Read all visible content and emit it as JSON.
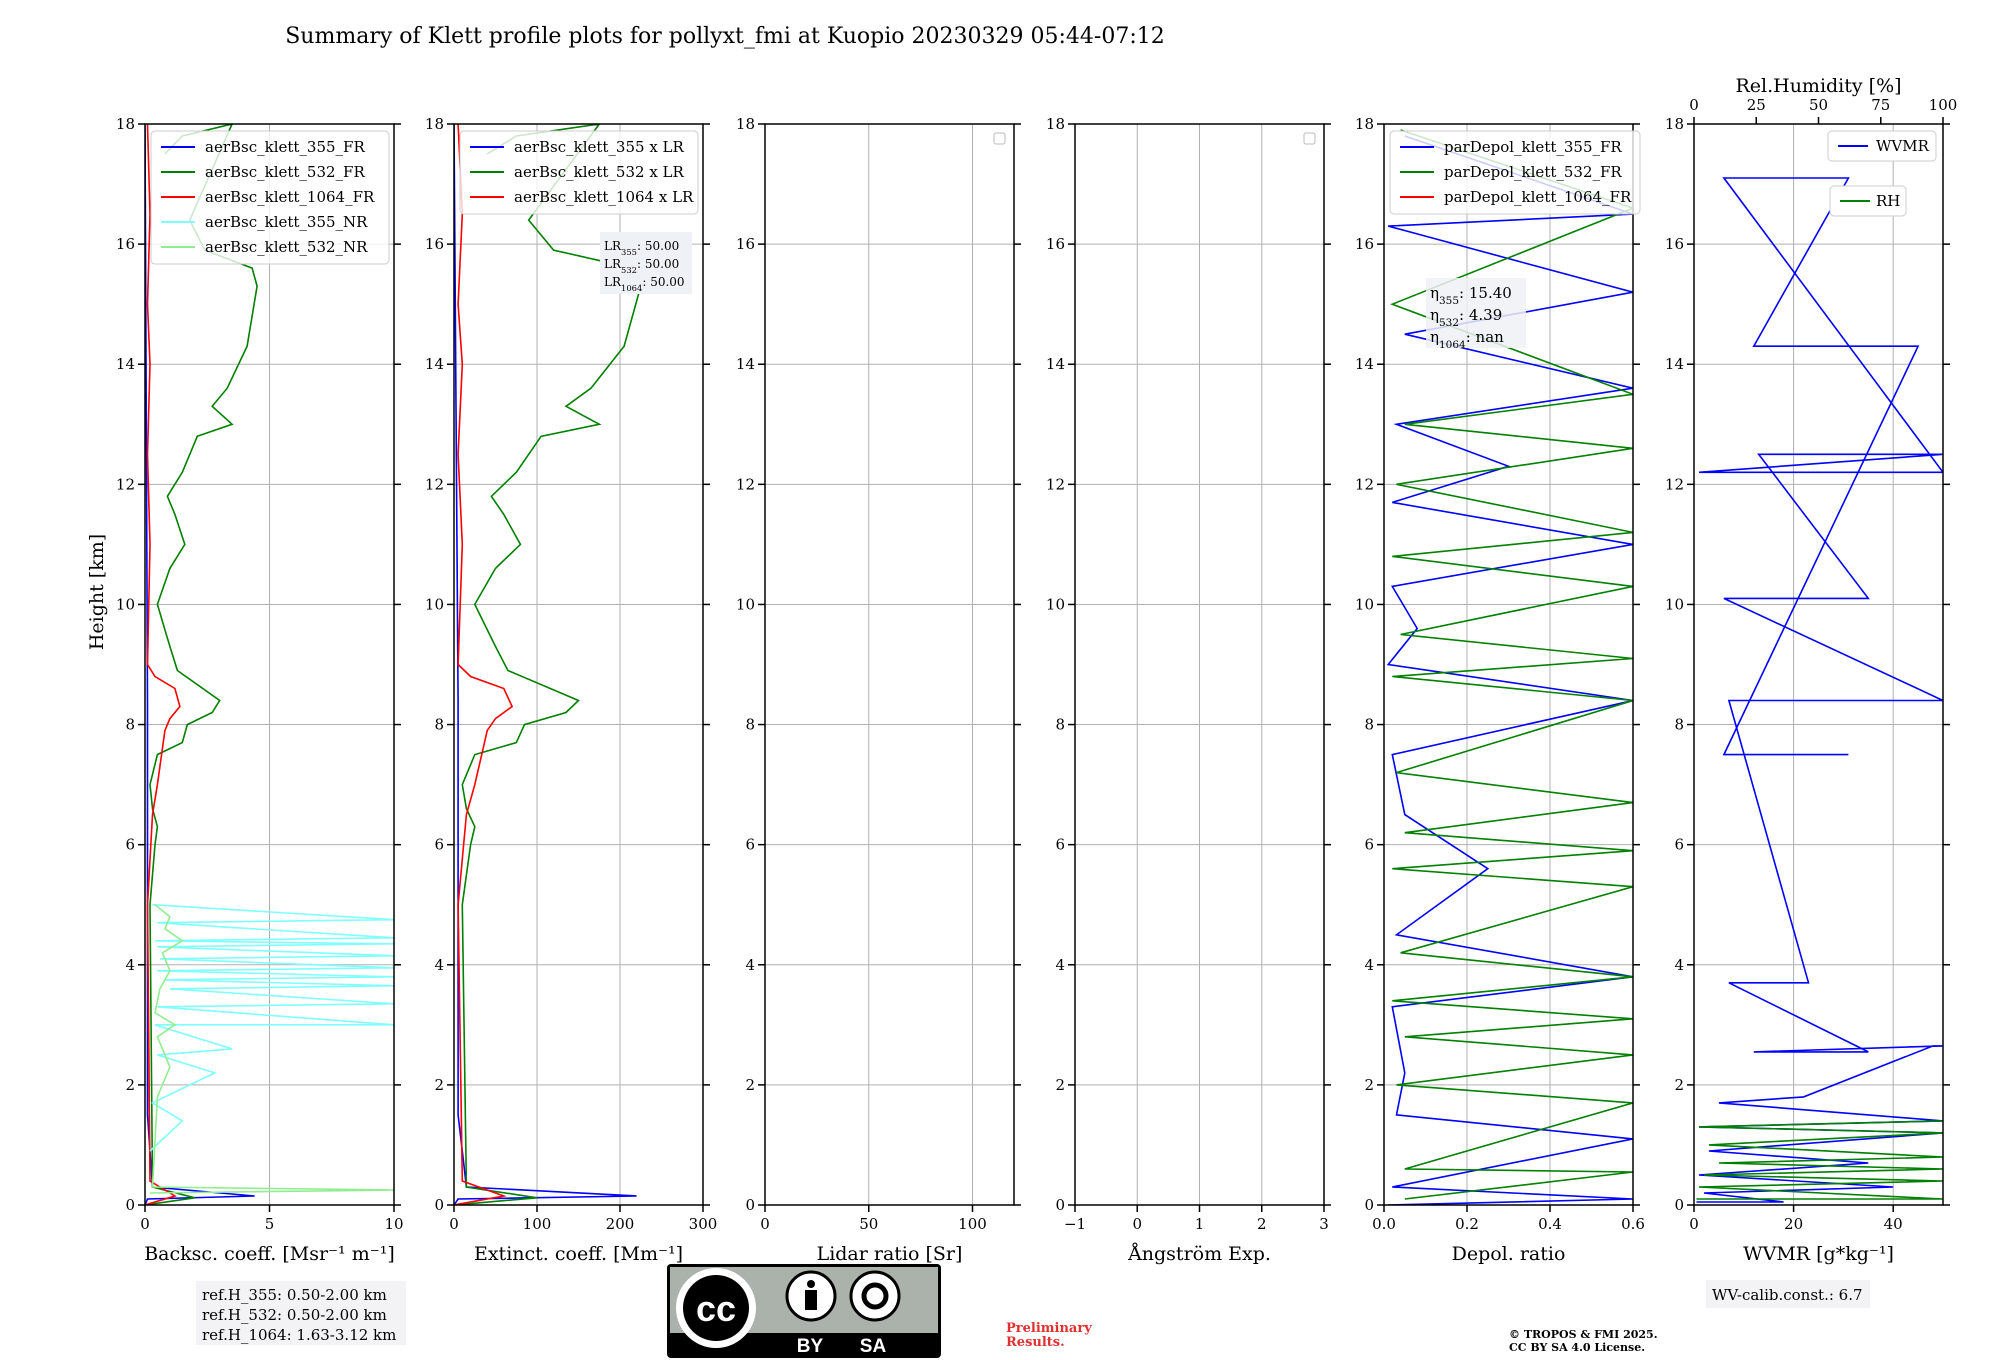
{
  "figure": {
    "title": "Summary of Klett profile plots for pollyxt_fmi at Kuopio 20230329 05:44-07:12",
    "ylabel": "Height [km]",
    "reference_heights": [
      "ref.H_355: 0.50-2.00 km",
      "ref.H_532: 0.50-2.00 km",
      "ref.H_1064: 1.63-3.12 km"
    ],
    "wv_calib": "WV-calib.const.: 6.7",
    "preliminary": [
      "Preliminary",
      "Results."
    ],
    "copyright": [
      "© TROPOS & FMI 2025.",
      "CC BY SA 4.0 License."
    ],
    "cc_badge": {
      "cc": "cc",
      "by": "BY",
      "sa": "SA"
    },
    "colors": {
      "blue": "#0000ff",
      "green": "#008000",
      "red": "#ff0000",
      "cyan": "#7fffff",
      "lightgreen": "#90ee90",
      "grid": "#b0b0b0",
      "warn": "#e03030"
    }
  },
  "chart_data": [
    {
      "type": "line",
      "xlabel": "Backsc. coeff. [Msr⁻¹ m⁻¹]",
      "xlim": [
        0,
        10
      ],
      "ylim": [
        0,
        18
      ],
      "xticks": [
        "0",
        "5",
        "10"
      ],
      "yticks": [
        "0",
        "2",
        "4",
        "6",
        "8",
        "10",
        "12",
        "14",
        "16",
        "18"
      ],
      "legend": {
        "position": "upper-left",
        "entries": [
          "aerBsc_klett_355_FR",
          "aerBsc_klett_532_FR",
          "aerBsc_klett_1064_FR",
          "aerBsc_klett_355_NR",
          "aerBsc_klett_532_NR"
        ]
      },
      "series": [
        {
          "name": "aerBsc_klett_355_FR",
          "color": "#0000ff",
          "x": [
            0.0,
            0.1,
            4.4,
            0.3,
            0.2,
            0.1,
            0.1,
            0.0
          ],
          "y": [
            0.0,
            0.1,
            0.15,
            0.3,
            0.9,
            1.5,
            8.35,
            18
          ]
        },
        {
          "name": "aerBsc_klett_532_FR",
          "color": "#008000",
          "x": [
            0.0,
            2.0,
            0.3,
            0.2,
            0.4,
            0.5,
            0.3,
            0.2,
            0.5,
            1.5,
            1.7,
            2.7,
            3.0,
            1.3,
            1.0,
            0.5,
            1.0,
            1.6,
            1.2,
            0.9,
            1.5,
            1.8,
            2.1,
            3.5,
            2.7,
            3.3,
            4.1,
            4.5,
            4.3,
            2.4,
            1.8,
            3.5,
            1.5,
            0.8
          ],
          "y": [
            0.0,
            0.12,
            0.3,
            5.0,
            6.0,
            6.3,
            6.6,
            7.0,
            7.5,
            7.7,
            8.0,
            8.2,
            8.4,
            8.9,
            9.3,
            10.0,
            10.6,
            11.0,
            11.5,
            11.8,
            12.2,
            12.5,
            12.8,
            13.0,
            13.3,
            13.6,
            14.3,
            15.3,
            15.6,
            15.9,
            16.4,
            18.0,
            17.8,
            17.5
          ]
        },
        {
          "name": "aerBsc_klett_1064_FR",
          "color": "#ff0000",
          "x": [
            0.0,
            1.2,
            0.2,
            0.1,
            0.3,
            0.5,
            0.7,
            0.8,
            1.0,
            1.4,
            1.2,
            0.4,
            0.1,
            0.2,
            0.1,
            0.2,
            0.1,
            0.2,
            0.1
          ],
          "y": [
            0.0,
            0.15,
            0.4,
            5.0,
            6.5,
            7.0,
            7.6,
            7.9,
            8.1,
            8.3,
            8.6,
            8.8,
            9.0,
            11.0,
            12.5,
            14.0,
            15.0,
            16.5,
            18.0
          ]
        },
        {
          "name": "aerBsc_klett_355_NR",
          "color": "#7fffff",
          "x": [
            0.2,
            1.5,
            0.3,
            2.8,
            0.5,
            3.5,
            0.4,
            10.0,
            0.5,
            10.0,
            1.0,
            10.0,
            0.8,
            10.0,
            0.5,
            10.0,
            0.6,
            10.0,
            0.5,
            10.0,
            0.4,
            10.0,
            0.5,
            10.0,
            0.3
          ],
          "y": [
            0.9,
            1.4,
            1.7,
            2.2,
            2.5,
            2.6,
            3.0,
            3.0,
            3.3,
            3.35,
            3.6,
            3.65,
            3.75,
            3.8,
            3.9,
            3.95,
            4.1,
            4.15,
            4.3,
            4.35,
            4.4,
            4.45,
            4.7,
            4.75,
            5.0
          ]
        },
        {
          "name": "aerBsc_klett_532_NR",
          "color": "#90ee90",
          "x": [
            0.2,
            10.0,
            0.3,
            0.5,
            1.0,
            0.5,
            1.2,
            0.4,
            0.6,
            1.0,
            0.7,
            1.5,
            0.8,
            1.0,
            0.4
          ],
          "y": [
            0.2,
            0.25,
            0.3,
            1.8,
            2.3,
            2.8,
            3.0,
            3.2,
            3.6,
            3.9,
            4.2,
            4.4,
            4.6,
            4.8,
            5.0
          ]
        }
      ]
    },
    {
      "type": "line",
      "xlabel": "Extinct. coeff. [Mm⁻¹]",
      "xlim": [
        0,
        300
      ],
      "ylim": [
        0,
        18
      ],
      "xticks": [
        "0",
        "100",
        "200",
        "300"
      ],
      "yticks": [
        "0",
        "2",
        "4",
        "6",
        "8",
        "10",
        "12",
        "14",
        "16",
        "18"
      ],
      "legend": {
        "position": "upper-left",
        "entries": [
          "aerBsc_klett_355 x LR",
          "aerBsc_klett_532 x LR",
          "aerBsc_klett_1064 x LR"
        ]
      },
      "lidar_ratio_box": [
        "LR355: 50.00",
        "LR532: 50.00",
        "LR1064: 50.00"
      ],
      "series": [
        {
          "name": "aerBsc_klett_355 x LR",
          "color": "#0000ff",
          "x": [
            0,
            5,
            220,
            15,
            10,
            5,
            5,
            0
          ],
          "y": [
            0.0,
            0.1,
            0.15,
            0.3,
            0.9,
            1.5,
            8.35,
            18
          ]
        },
        {
          "name": "aerBsc_klett_532 x LR",
          "color": "#008000",
          "x": [
            0,
            100,
            15,
            10,
            20,
            25,
            15,
            10,
            25,
            75,
            85,
            135,
            150,
            65,
            50,
            25,
            50,
            80,
            60,
            45,
            75,
            90,
            105,
            175,
            135,
            165,
            205,
            225,
            215,
            120,
            90,
            175,
            75,
            40
          ],
          "y": [
            0.0,
            0.12,
            0.3,
            5.0,
            6.0,
            6.3,
            6.6,
            7.0,
            7.5,
            7.7,
            8.0,
            8.2,
            8.4,
            8.9,
            9.3,
            10.0,
            10.6,
            11.0,
            11.5,
            11.8,
            12.2,
            12.5,
            12.8,
            13.0,
            13.3,
            13.6,
            14.3,
            15.3,
            15.6,
            15.9,
            16.4,
            18.0,
            17.8,
            17.5
          ]
        },
        {
          "name": "aerBsc_klett_1064 x LR",
          "color": "#ff0000",
          "x": [
            0,
            60,
            10,
            5,
            15,
            25,
            35,
            40,
            50,
            70,
            60,
            20,
            5,
            10,
            5,
            10,
            5,
            10,
            5
          ],
          "y": [
            0.0,
            0.15,
            0.4,
            5.0,
            6.5,
            7.0,
            7.6,
            7.9,
            8.1,
            8.3,
            8.6,
            8.8,
            9.0,
            11.0,
            12.5,
            14.0,
            15.0,
            16.5,
            18.0
          ]
        }
      ]
    },
    {
      "type": "line",
      "xlabel": "Lidar ratio [Sr]",
      "xlim": [
        0,
        120
      ],
      "ylim": [
        0,
        18
      ],
      "xticks": [
        "0",
        "50",
        "100"
      ],
      "yticks": [
        "0",
        "2",
        "4",
        "6",
        "8",
        "10",
        "12",
        "14",
        "16",
        "18"
      ],
      "legend": {
        "position": "upper-right",
        "entries": []
      },
      "series": []
    },
    {
      "type": "line",
      "xlabel": "Ångström Exp.",
      "xlim": [
        -1,
        3
      ],
      "ylim": [
        0,
        18
      ],
      "xticks": [
        "−1",
        "0",
        "1",
        "2",
        "3"
      ],
      "yticks": [
        "0",
        "2",
        "4",
        "6",
        "8",
        "10",
        "12",
        "14",
        "16",
        "18"
      ],
      "legend": {
        "position": "upper-right",
        "entries": []
      },
      "series": []
    },
    {
      "type": "line",
      "xlabel": "Depol. ratio",
      "xlim": [
        0,
        0.6
      ],
      "ylim": [
        0,
        18
      ],
      "xticks": [
        "0.0",
        "0.2",
        "0.4",
        "0.6"
      ],
      "yticks": [
        "0",
        "2",
        "4",
        "6",
        "8",
        "10",
        "12",
        "14",
        "16",
        "18"
      ],
      "legend": {
        "position": "upper-left",
        "entries": [
          "parDepol_klett_355_FR",
          "parDepol_klett_532_FR",
          "parDepol_klett_1064_FR"
        ]
      },
      "eta_box": [
        "η355: 15.40",
        "η532: 4.39",
        "η1064: nan"
      ],
      "series": [
        {
          "name": "parDepol_klett_355_FR",
          "color": "#0000ff",
          "x": [
            0.01,
            0.6,
            0.02,
            0.6,
            0.03,
            0.05,
            0.02,
            0.6,
            0.03,
            0.25,
            0.05,
            0.02,
            0.6,
            0.01,
            0.08,
            0.02,
            0.6,
            0.02,
            0.3,
            0.03,
            0.6,
            0.05,
            0.6,
            0.01,
            0.6,
            0.05
          ],
          "y": [
            0.0,
            0.1,
            0.3,
            1.1,
            1.5,
            2.2,
            3.3,
            3.8,
            4.5,
            5.6,
            6.5,
            7.5,
            8.4,
            9.0,
            9.6,
            10.3,
            11.0,
            11.7,
            12.3,
            13.0,
            13.6,
            14.5,
            15.2,
            16.3,
            16.5,
            17.8
          ]
        },
        {
          "name": "parDepol_klett_532_FR",
          "color": "#008000",
          "x": [
            0.05,
            0.6,
            0.05,
            0.6,
            0.03,
            0.6,
            0.05,
            0.6,
            0.02,
            0.6,
            0.04,
            0.6,
            0.02,
            0.6,
            0.05,
            0.6,
            0.03,
            0.6,
            0.02,
            0.6,
            0.04,
            0.6,
            0.02,
            0.6,
            0.03,
            0.6,
            0.05,
            0.6,
            0.02,
            0.6,
            0.04
          ],
          "y": [
            0.1,
            0.55,
            0.6,
            1.7,
            2.0,
            2.5,
            2.8,
            3.1,
            3.4,
            3.8,
            4.2,
            5.3,
            5.6,
            5.9,
            6.2,
            6.7,
            7.2,
            8.4,
            8.8,
            9.1,
            9.5,
            10.3,
            10.8,
            11.2,
            12.0,
            12.6,
            13.0,
            13.5,
            15.0,
            16.6,
            17.9
          ]
        }
      ]
    },
    {
      "type": "line",
      "xlabel": "WVMR [g*kg⁻¹]",
      "x2label": "Rel.Humidity [%]",
      "xlim": [
        0,
        50
      ],
      "x2lim": [
        0,
        100
      ],
      "ylim": [
        0,
        18
      ],
      "xticks": [
        "0",
        "20",
        "40"
      ],
      "x2ticks": [
        "0",
        "25",
        "50",
        "75",
        "100"
      ],
      "yticks": [
        "0",
        "2",
        "4",
        "6",
        "8",
        "10",
        "12",
        "14",
        "16",
        "18"
      ],
      "legend": {
        "position": "upper-right",
        "entries": [
          "WVMR",
          "RH"
        ]
      },
      "series": [
        {
          "name": "WVMR",
          "color": "#0000ff",
          "x": [
            0.5,
            18,
            2,
            40,
            1,
            35,
            3,
            50,
            1,
            50,
            5,
            22,
            48,
            50,
            12,
            35,
            7,
            23,
            7,
            50,
            6,
            35,
            13,
            50,
            1,
            50,
            6,
            31,
            12,
            45,
            6,
            31
          ],
          "y": [
            0.05,
            0.05,
            0.2,
            0.3,
            0.5,
            0.7,
            0.9,
            1.2,
            1.3,
            1.4,
            1.7,
            1.8,
            2.65,
            2.65,
            2.55,
            2.55,
            3.7,
            3.7,
            8.4,
            8.4,
            10.1,
            10.1,
            12.5,
            12.5,
            12.2,
            12.2,
            17.1,
            17.1,
            14.3,
            14.3,
            7.5,
            7.5
          ]
        },
        {
          "name": "RH",
          "color": "#008000",
          "x": [
            0.5,
            50,
            1,
            50,
            2,
            50,
            5,
            50,
            3,
            50,
            1,
            50
          ],
          "y": [
            0.1,
            0.1,
            0.3,
            0.4,
            0.5,
            0.6,
            0.7,
            0.8,
            1.0,
            1.2,
            1.3,
            1.4
          ]
        }
      ]
    }
  ]
}
